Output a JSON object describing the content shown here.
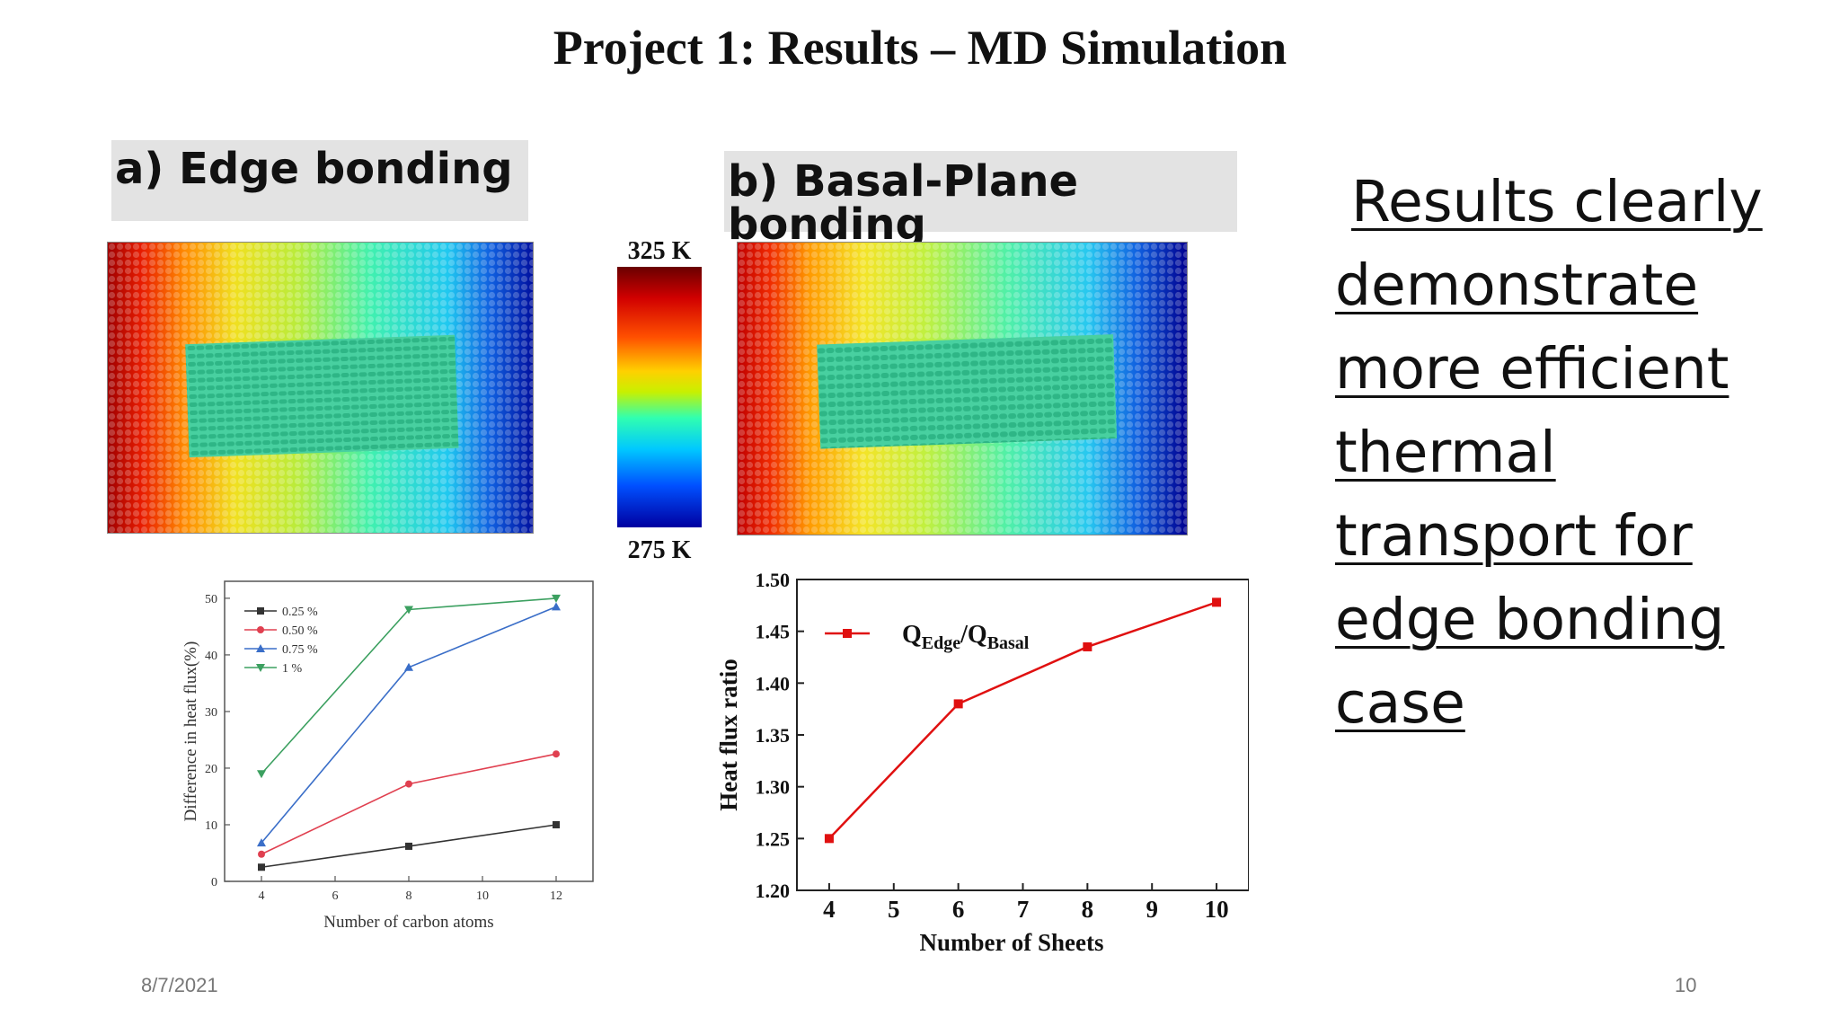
{
  "slide": {
    "title": "Project 1: Results – MD Simulation",
    "label_a": "a) Edge bonding",
    "label_b": "b) Basal-Plane bonding",
    "colorbar_max": "325 K",
    "colorbar_min": "275 K",
    "right_text_lines": [
      "Results clearly",
      "demonstrate",
      "more efficient",
      "thermal",
      "transport for",
      "edge bonding",
      "case"
    ],
    "footer_date": "8/7/2021",
    "footer_page": "10"
  },
  "colors": {
    "series_black": "#333333",
    "series_red": "#e04050",
    "series_blue": "#3a6ec8",
    "series_green": "#3ca060",
    "ratio_red": "#e01010"
  },
  "chart_data": [
    {
      "type": "line",
      "xlabel": "Number of carbon atoms",
      "ylabel": "Difference in heat flux(%)",
      "x": [
        4,
        8,
        12
      ],
      "x_ticks": [
        4,
        6,
        8,
        10,
        12
      ],
      "y_ticks": [
        0,
        10,
        20,
        30,
        40,
        50
      ],
      "xlim": [
        3,
        13
      ],
      "ylim": [
        0,
        53
      ],
      "legend_position": "top-left",
      "grid": false,
      "series": [
        {
          "name": "0.25 %",
          "values": [
            2.5,
            6.2,
            10.0
          ],
          "color": "#333333",
          "marker": "square"
        },
        {
          "name": "0.50 %",
          "values": [
            4.8,
            17.2,
            22.5
          ],
          "color": "#e04050",
          "marker": "circle"
        },
        {
          "name": "0.75 %",
          "values": [
            6.8,
            37.8,
            48.5
          ],
          "color": "#3a6ec8",
          "marker": "triangle-up"
        },
        {
          "name": "1 %",
          "values": [
            19.0,
            48.0,
            50.0
          ],
          "color": "#3ca060",
          "marker": "triangle-down"
        }
      ]
    },
    {
      "type": "line",
      "xlabel": "Number of Sheets",
      "ylabel": "Heat flux ratio",
      "x": [
        4,
        6,
        8,
        10
      ],
      "x_ticks": [
        4,
        5,
        6,
        7,
        8,
        9,
        10
      ],
      "y_ticks": [
        1.2,
        1.25,
        1.3,
        1.35,
        1.4,
        1.45,
        1.5
      ],
      "xlim": [
        3.5,
        10.5
      ],
      "ylim": [
        1.2,
        1.5
      ],
      "legend_position": "top-left",
      "grid": false,
      "series": [
        {
          "name_main": "Q",
          "name_sub1": "Edge",
          "name_mid": "/Q",
          "name_sub2": "Basal",
          "values": [
            1.25,
            1.38,
            1.435,
            1.478
          ],
          "color": "#e01010",
          "marker": "square"
        }
      ]
    }
  ]
}
